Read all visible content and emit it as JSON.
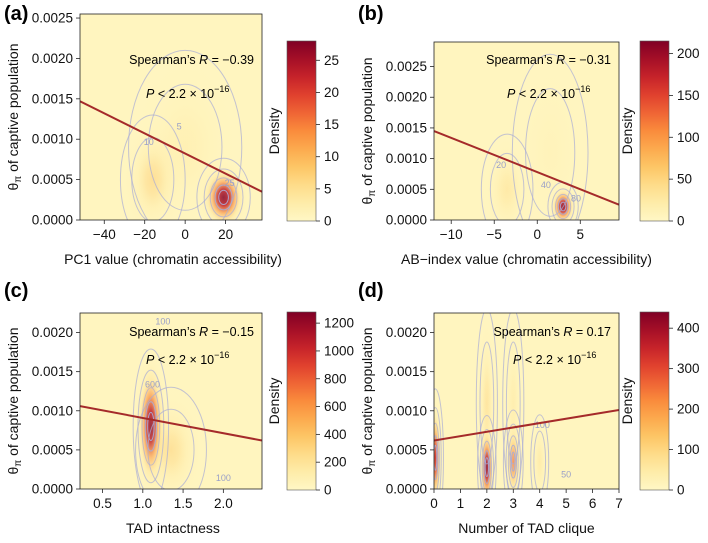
{
  "figure": {
    "description_free": true
  },
  "chart_data": [
    {
      "type": "heatmap",
      "panel_label": "(a)",
      "title": "",
      "xlabel": "PC1 value (chromatin accessibility)",
      "ylabel_symbol": "θ",
      "ylabel_sub": "π",
      "ylabel_rest": " of captive population",
      "xlim": [
        -52,
        38
      ],
      "ylim": [
        0,
        0.00255
      ],
      "x_ticks": [
        -40,
        -20,
        0,
        20
      ],
      "x_tick_labels": [
        "−40",
        "−20",
        "0",
        "20"
      ],
      "y_ticks": [
        0,
        0.0005,
        0.001,
        0.0015,
        0.002,
        0.0025
      ],
      "y_tick_labels": [
        "0.0000",
        "0.0005",
        "0.0010",
        "0.0015",
        "0.0020",
        "0.0025"
      ],
      "stats": {
        "method": "Spearman’s",
        "R_label": "R",
        "R_value": "= −0.39",
        "P_label": "P",
        "P_value": "< 2.2 × 10",
        "P_exp": "−16"
      },
      "regression_line": {
        "x": [
          -52,
          38
        ],
        "y": [
          0.00147,
          0.00035
        ]
      },
      "density_peaks": [
        {
          "x": 19,
          "y": 0.00028,
          "sx": 6,
          "sy": 0.00022,
          "w": 1.0
        },
        {
          "x": -16,
          "y": 0.0005,
          "sx": 8,
          "sy": 0.0004,
          "w": 0.32
        },
        {
          "x": 0,
          "y": 0.0009,
          "sx": 14,
          "sy": 0.0006,
          "w": 0.15
        }
      ],
      "contour_labels": [
        {
          "x": -3,
          "y": 0.00112,
          "text": "5"
        },
        {
          "x": -18,
          "y": 0.00093,
          "text": "10"
        },
        {
          "x": 22,
          "y": 0.00042,
          "text": "25"
        }
      ],
      "colorbar": {
        "label": "Density",
        "ticks": [
          0,
          5,
          10,
          15,
          20,
          25
        ],
        "max": 28
      }
    },
    {
      "type": "heatmap",
      "panel_label": "(b)",
      "title": "",
      "xlabel": "AB−index value (chromatin accessibility)",
      "ylabel_symbol": "θ",
      "ylabel_sub": "π",
      "ylabel_rest": " of captive population",
      "xlim": [
        -12,
        9.5
      ],
      "ylim": [
        0,
        0.0029
      ],
      "x_ticks": [
        -10,
        -5,
        0,
        5
      ],
      "x_tick_labels": [
        "−10",
        "−5",
        "0",
        "5"
      ],
      "y_ticks": [
        0,
        0.0005,
        0.001,
        0.0015,
        0.002,
        0.0025
      ],
      "y_tick_labels": [
        "0.0000",
        "0.0005",
        "0.0010",
        "0.0015",
        "0.0020",
        "0.0025"
      ],
      "stats": {
        "method": "Spearman’s",
        "R_label": "R",
        "R_value": "= −0.31",
        "P_label": "P",
        "P_value": "< 2.2 × 10",
        "P_exp": "−16"
      },
      "regression_line": {
        "x": [
          -12,
          9.5
        ],
        "y": [
          0.00145,
          0.00025
        ]
      },
      "density_peaks": [
        {
          "x": 3,
          "y": 0.00022,
          "sx": 0.8,
          "sy": 0.00018,
          "w": 1.0
        },
        {
          "x": -3.5,
          "y": 0.0005,
          "sx": 1.5,
          "sy": 0.00045,
          "w": 0.22
        },
        {
          "x": 1.5,
          "y": 0.0011,
          "sx": 2.2,
          "sy": 0.0008,
          "w": 0.09
        }
      ],
      "contour_labels": [
        {
          "x": -4.2,
          "y": 0.00085,
          "text": "20"
        },
        {
          "x": 1.0,
          "y": 0.00052,
          "text": "40"
        },
        {
          "x": 4.5,
          "y": 0.0003,
          "text": "80"
        }
      ],
      "colorbar": {
        "label": "Density",
        "ticks": [
          0,
          50,
          100,
          150,
          200
        ],
        "max": 215
      }
    },
    {
      "type": "heatmap",
      "panel_label": "(c)",
      "title": "",
      "xlabel": "TAD intactness",
      "ylabel_symbol": "θ",
      "ylabel_sub": "π",
      "ylabel_rest": " of captive population",
      "xlim": [
        0.22,
        2.48
      ],
      "ylim": [
        0,
        0.00225
      ],
      "x_ticks": [
        0.5,
        1.0,
        1.5,
        2.0
      ],
      "x_tick_labels": [
        "0.5",
        "1.0",
        "1.5",
        "2.0"
      ],
      "y_ticks": [
        0,
        0.0005,
        0.001,
        0.0015,
        0.002
      ],
      "y_tick_labels": [
        "0.0000",
        "0.0005",
        "0.0010",
        "0.0015",
        "0.0020"
      ],
      "stats": {
        "method": "Spearman’s",
        "R_label": "R",
        "R_value": "= −0.15",
        "P_label": "P",
        "P_value": "< 2.2 × 10",
        "P_exp": "−16"
      },
      "regression_line": {
        "x": [
          0.22,
          2.48
        ],
        "y": [
          0.00106,
          0.00062
        ]
      },
      "density_peaks": [
        {
          "x": 1.1,
          "y": 0.0008,
          "sx": 0.1,
          "sy": 0.00045,
          "w": 1.0
        },
        {
          "x": 1.35,
          "y": 0.0005,
          "sx": 0.22,
          "sy": 0.0004,
          "w": 0.28
        }
      ],
      "contour_labels": [
        {
          "x": 1.25,
          "y": 0.0021,
          "text": "100"
        },
        {
          "x": 2.0,
          "y": 0.0001,
          "text": "100"
        },
        {
          "x": 1.12,
          "y": 0.0013,
          "text": "600"
        }
      ],
      "colorbar": {
        "label": "Density",
        "ticks": [
          0,
          200,
          400,
          600,
          800,
          1000,
          1200
        ],
        "max": 1280
      }
    },
    {
      "type": "heatmap",
      "panel_label": "(d)",
      "title": "",
      "xlabel": "Number of TAD clique",
      "ylabel_symbol": "θ",
      "ylabel_sub": "π",
      "ylabel_rest": " of captive population",
      "xlim": [
        0,
        7
      ],
      "ylim": [
        0,
        0.00225
      ],
      "x_ticks": [
        0,
        1,
        2,
        3,
        4,
        5,
        6,
        7
      ],
      "x_tick_labels": [
        "0",
        "1",
        "2",
        "3",
        "4",
        "5",
        "6",
        "7"
      ],
      "y_ticks": [
        0,
        0.0005,
        0.001,
        0.0015,
        0.002
      ],
      "y_tick_labels": [
        "0.0000",
        "0.0005",
        "0.0010",
        "0.0015",
        "0.0020"
      ],
      "stats": {
        "method": "Spearman’s",
        "R_label": "R",
        "R_value": "= 0.17",
        "P_label": "P",
        "P_value": "< 2.2 × 10",
        "P_exp": "−16"
      },
      "regression_line": {
        "x": [
          0,
          7
        ],
        "y": [
          0.00062,
          0.00101
        ]
      },
      "density_peaks": [
        {
          "x": 2,
          "y": 0.00028,
          "sx": 0.16,
          "sy": 0.0003,
          "w": 1.0
        },
        {
          "x": 0.05,
          "y": 0.0004,
          "sx": 0.14,
          "sy": 0.0004,
          "w": 0.75
        },
        {
          "x": 3,
          "y": 0.00035,
          "sx": 0.17,
          "sy": 0.0003,
          "w": 0.6
        },
        {
          "x": 4,
          "y": 0.00035,
          "sx": 0.17,
          "sy": 0.0003,
          "w": 0.2
        },
        {
          "x": 2,
          "y": 0.0011,
          "sx": 0.2,
          "sy": 0.0006,
          "w": 0.25
        },
        {
          "x": 3,
          "y": 0.0011,
          "sx": 0.2,
          "sy": 0.0006,
          "w": 0.18
        }
      ],
      "contour_labels": [
        {
          "x": 4.1,
          "y": 0.00078,
          "text": "100"
        },
        {
          "x": 5.0,
          "y": 0.00015,
          "text": "50"
        }
      ],
      "colorbar": {
        "label": "Density",
        "ticks": [
          0,
          100,
          200,
          300,
          400
        ],
        "max": 440
      }
    }
  ],
  "colors": {
    "density_low": "#fff6c4",
    "density_mid": "#fa9c3c",
    "density_high": "#8e0b2c",
    "regression": "#a52a2a",
    "contour": "#a9acd6"
  }
}
